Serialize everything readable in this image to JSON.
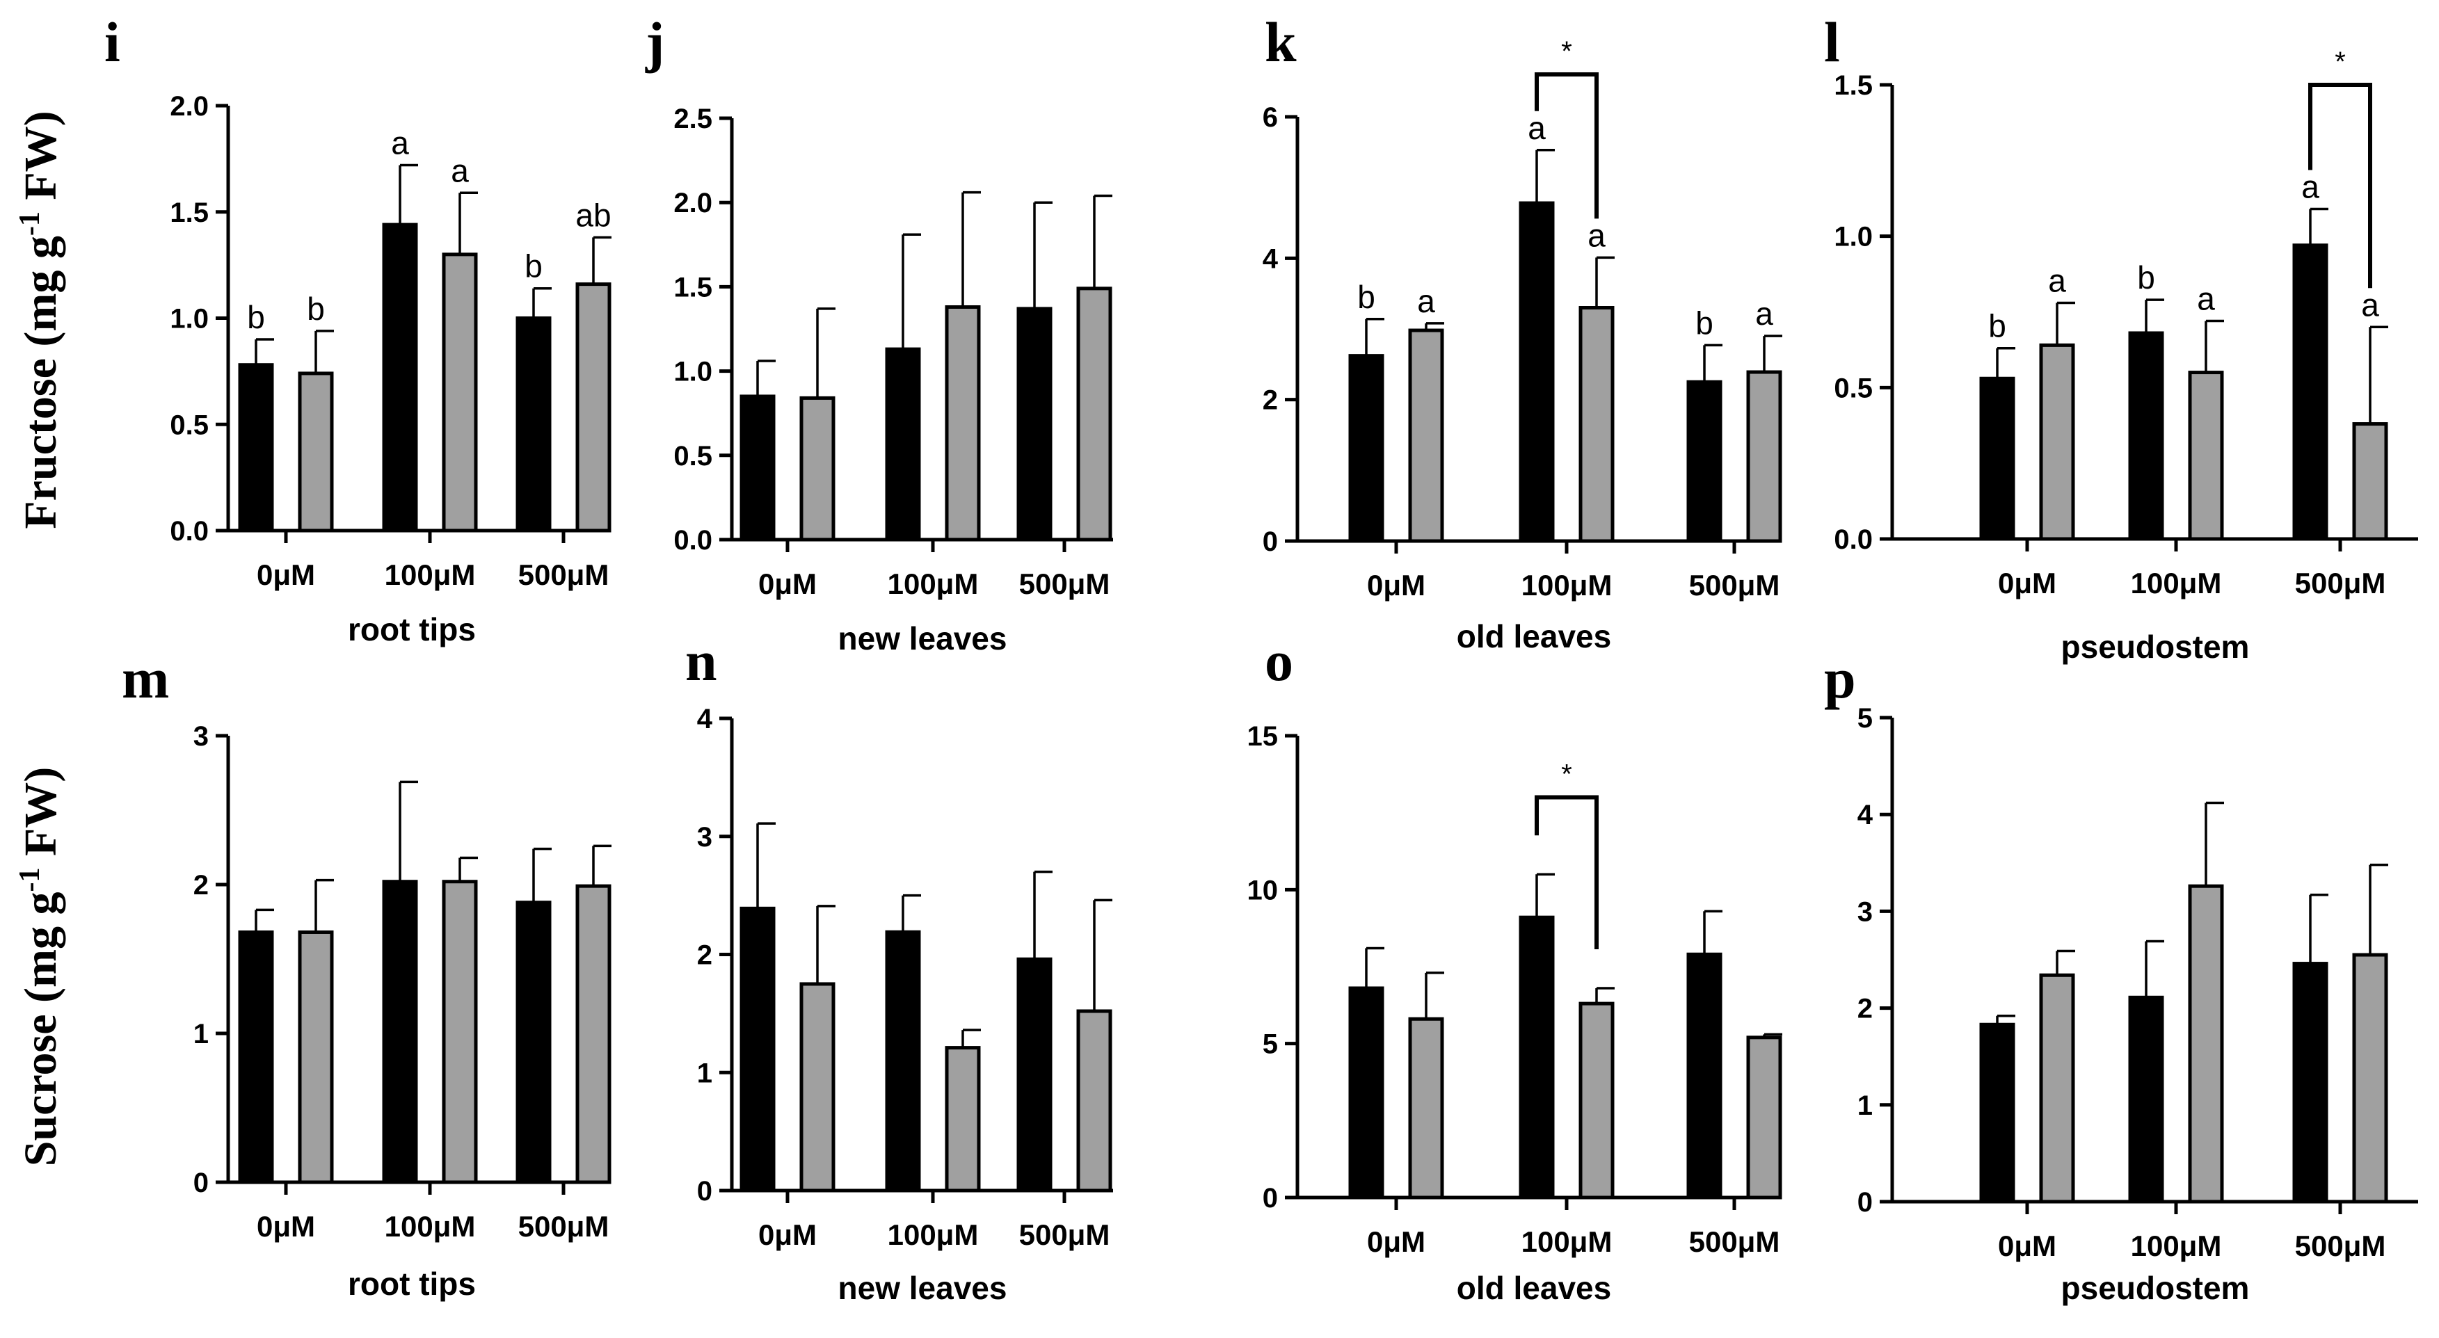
{
  "figure": {
    "row_ylabels": [
      {
        "prefix": "Fructose (mg g",
        "sup": "-1",
        "suffix": " FW)"
      },
      {
        "prefix": "Sucrose (mg g",
        "sup": "-1",
        "suffix": " FW)"
      }
    ],
    "colors": {
      "series_a": "#000000",
      "series_b": "#a0a0a0",
      "axis": "#000000"
    }
  },
  "chart_data": [
    {
      "letter": "i",
      "type": "bar",
      "xlabel": "root tips",
      "ylabel": "Fructose (mg g-1 FW)",
      "categories": [
        "0μM",
        "100μM",
        "500μM"
      ],
      "ylim": [
        0,
        2.0
      ],
      "yticks": [
        0.0,
        0.5,
        1.0,
        1.5,
        2.0
      ],
      "ytick_labels": [
        "0.0",
        "0.5",
        "1.0",
        "1.5",
        "2.0"
      ],
      "series": [
        {
          "name": "black",
          "values": [
            0.78,
            1.44,
            1.0
          ],
          "errors": [
            0.12,
            0.28,
            0.14
          ],
          "labels": [
            "b",
            "a",
            "b"
          ]
        },
        {
          "name": "gray",
          "values": [
            0.74,
            1.3,
            1.16
          ],
          "errors": [
            0.2,
            0.29,
            0.22
          ],
          "labels": [
            "b",
            "a",
            "ab"
          ]
        }
      ],
      "significance": []
    },
    {
      "letter": "j",
      "type": "bar",
      "xlabel": "new leaves",
      "ylabel": "Fructose (mg g-1 FW)",
      "categories": [
        "0μM",
        "100μM",
        "500μM"
      ],
      "ylim": [
        0,
        2.5
      ],
      "yticks": [
        0.0,
        0.5,
        1.0,
        1.5,
        2.0,
        2.5
      ],
      "ytick_labels": [
        "0.0",
        "0.5",
        "1.0",
        "1.5",
        "2.0",
        "2.5"
      ],
      "series": [
        {
          "name": "black",
          "values": [
            0.85,
            1.13,
            1.37
          ],
          "errors": [
            0.21,
            0.68,
            0.63
          ],
          "labels": [
            "",
            "",
            ""
          ]
        },
        {
          "name": "gray",
          "values": [
            0.84,
            1.38,
            1.49
          ],
          "errors": [
            0.53,
            0.68,
            0.55
          ],
          "labels": [
            "",
            "",
            ""
          ]
        }
      ],
      "significance": []
    },
    {
      "letter": "k",
      "type": "bar",
      "xlabel": "old leaves",
      "ylabel": "Fructose (mg g-1 FW)",
      "categories": [
        "0μM",
        "100μM",
        "500μM"
      ],
      "ylim": [
        0,
        6
      ],
      "yticks": [
        0,
        2,
        4,
        6
      ],
      "ytick_labels": [
        "0",
        "2",
        "4",
        "6"
      ],
      "series": [
        {
          "name": "black",
          "values": [
            2.62,
            4.78,
            2.25
          ],
          "errors": [
            0.52,
            0.75,
            0.52
          ],
          "labels": [
            "b",
            "a",
            "b"
          ]
        },
        {
          "name": "gray",
          "values": [
            2.98,
            3.3,
            2.39
          ],
          "errors": [
            0.1,
            0.71,
            0.51
          ],
          "labels": [
            "a",
            "a",
            "a"
          ]
        }
      ],
      "significance": [
        {
          "group": 1,
          "label": "*",
          "top": 6.6
        }
      ]
    },
    {
      "letter": "l",
      "type": "bar",
      "xlabel": "pseudostem",
      "ylabel": "Fructose (mg g-1 FW)",
      "categories": [
        "0μM",
        "100μM",
        "500μM"
      ],
      "ylim": [
        0,
        1.5
      ],
      "yticks": [
        0.0,
        0.5,
        1.0,
        1.5
      ],
      "ytick_labels": [
        "0.0",
        "0.5",
        "1.0",
        "1.5"
      ],
      "series": [
        {
          "name": "black",
          "values": [
            0.53,
            0.68,
            0.97
          ],
          "errors": [
            0.1,
            0.11,
            0.12
          ],
          "labels": [
            "b",
            "b",
            "a"
          ]
        },
        {
          "name": "gray",
          "values": [
            0.64,
            0.55,
            0.38
          ],
          "errors": [
            0.14,
            0.17,
            0.32
          ],
          "labels": [
            "a",
            "a",
            "a"
          ]
        }
      ],
      "significance": [
        {
          "group": 2,
          "label": "*",
          "top": 1.5
        }
      ]
    },
    {
      "letter": "m",
      "type": "bar",
      "xlabel": "root tips",
      "ylabel": "Sucrose (mg g-1 FW)",
      "categories": [
        "0μM",
        "100μM",
        "500μM"
      ],
      "ylim": [
        0,
        3
      ],
      "yticks": [
        0,
        1,
        2,
        3
      ],
      "ytick_labels": [
        "0",
        "1",
        "2",
        "3"
      ],
      "series": [
        {
          "name": "black",
          "values": [
            1.68,
            2.02,
            1.88
          ],
          "errors": [
            0.15,
            0.67,
            0.36
          ],
          "labels": [
            "",
            "",
            ""
          ]
        },
        {
          "name": "gray",
          "values": [
            1.68,
            2.02,
            1.99
          ],
          "errors": [
            0.35,
            0.16,
            0.27
          ],
          "labels": [
            "",
            "",
            ""
          ]
        }
      ],
      "significance": []
    },
    {
      "letter": "n",
      "type": "bar",
      "xlabel": "new leaves",
      "ylabel": "Sucrose (mg g-1 FW)",
      "categories": [
        "0μM",
        "100μM",
        "500μM"
      ],
      "ylim": [
        0,
        4
      ],
      "yticks": [
        0,
        1,
        2,
        3,
        4
      ],
      "ytick_labels": [
        "0",
        "1",
        "2",
        "3",
        "4"
      ],
      "series": [
        {
          "name": "black",
          "values": [
            2.39,
            2.19,
            1.96
          ],
          "errors": [
            0.72,
            0.31,
            0.74
          ],
          "labels": [
            "",
            "",
            ""
          ]
        },
        {
          "name": "gray",
          "values": [
            1.75,
            1.21,
            1.52
          ],
          "errors": [
            0.66,
            0.15,
            0.94
          ],
          "labels": [
            "",
            "",
            ""
          ]
        }
      ],
      "significance": []
    },
    {
      "letter": "o",
      "type": "bar",
      "xlabel": "old leaves",
      "ylabel": "Sucrose (mg g-1 FW)",
      "categories": [
        "0μM",
        "100μM",
        "500μM"
      ],
      "ylim": [
        0,
        15
      ],
      "yticks": [
        0,
        5,
        10,
        15
      ],
      "ytick_labels": [
        "0",
        "5",
        "10",
        "15"
      ],
      "series": [
        {
          "name": "black",
          "values": [
            6.8,
            9.1,
            7.9
          ],
          "errors": [
            1.3,
            1.4,
            1.4
          ],
          "labels": [
            "",
            "",
            ""
          ]
        },
        {
          "name": "gray",
          "values": [
            5.8,
            6.3,
            5.2
          ],
          "errors": [
            1.5,
            0.5,
            0.1
          ],
          "labels": [
            "",
            "",
            ""
          ]
        }
      ],
      "significance": [
        {
          "group": 1,
          "label": "*",
          "top": 13.0
        }
      ]
    },
    {
      "letter": "p",
      "type": "bar",
      "xlabel": "pseudostem",
      "ylabel": "Sucrose (mg g-1 FW)",
      "categories": [
        "0μM",
        "100μM",
        "500μM"
      ],
      "ylim": [
        0,
        5
      ],
      "yticks": [
        0,
        1,
        2,
        3,
        4,
        5
      ],
      "ytick_labels": [
        "0",
        "1",
        "2",
        "3",
        "4",
        "5"
      ],
      "series": [
        {
          "name": "black",
          "values": [
            1.83,
            2.11,
            2.46
          ],
          "errors": [
            0.09,
            0.58,
            0.71
          ],
          "labels": [
            "",
            "",
            ""
          ]
        },
        {
          "name": "gray",
          "values": [
            2.34,
            3.26,
            2.55
          ],
          "errors": [
            0.25,
            0.86,
            0.93
          ],
          "labels": [
            "",
            "",
            ""
          ]
        }
      ],
      "significance": []
    }
  ]
}
